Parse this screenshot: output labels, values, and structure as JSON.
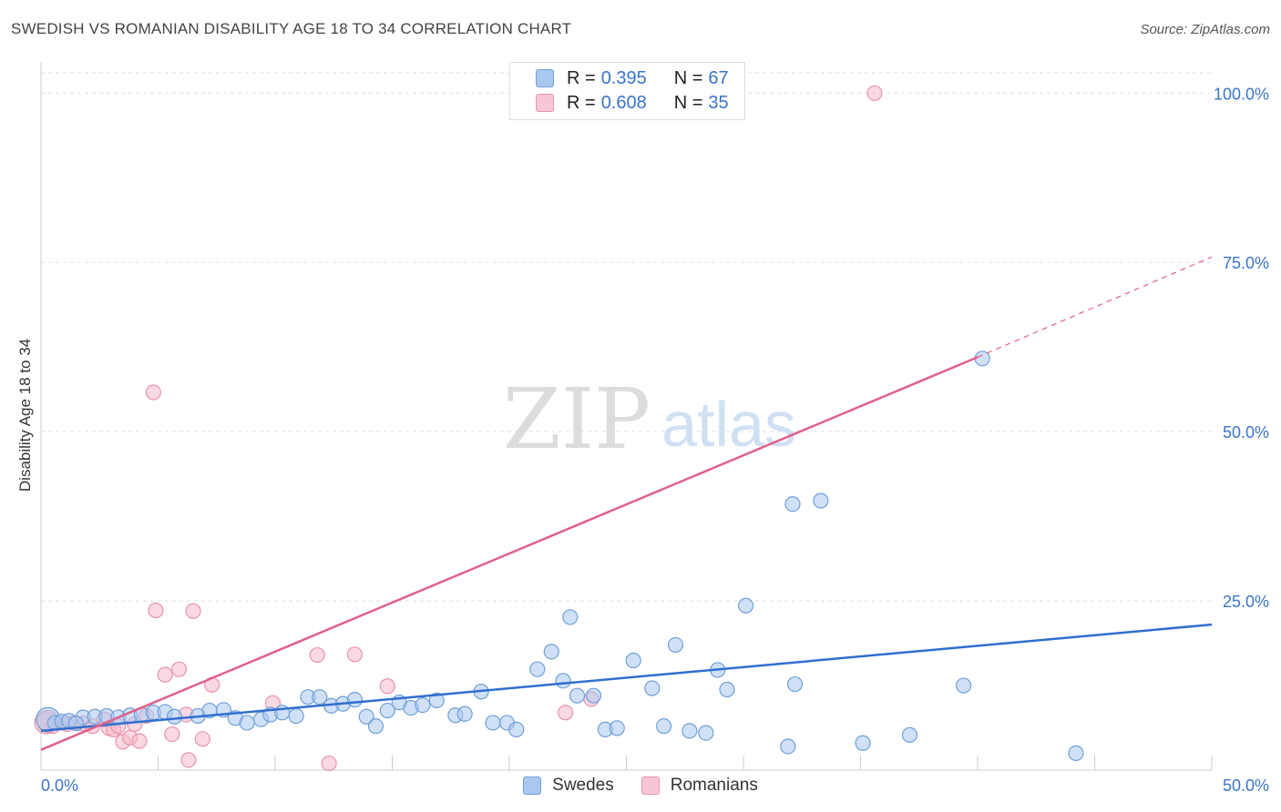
{
  "title": "SWEDISH VS ROMANIAN DISABILITY AGE 18 TO 34 CORRELATION CHART",
  "source": "Source: ZipAtlas.com",
  "watermark": {
    "zip": "ZIP",
    "atlas": "atlas"
  },
  "legend_top": [
    {
      "r_label": "R =",
      "r_value": "0.395",
      "n_label": "N =",
      "n_value": "67"
    },
    {
      "r_label": "R =",
      "r_value": "0.608",
      "n_label": "N =",
      "n_value": "35"
    }
  ],
  "legend_bottom": [
    {
      "label": "Swedes"
    },
    {
      "label": "Romanians"
    }
  ],
  "colors": {
    "swedes_fill": "#a9c8f0",
    "swedes_stroke": "#6f9fd8",
    "swedes_line": "#2f6fcf",
    "romanians_fill": "#f7b9cb",
    "romanians_stroke": "#e893ae",
    "romanians_line": "#e0608a",
    "axis_text": "#3a74c9",
    "grid": "#dddddd"
  },
  "chart_data": {
    "type": "scatter",
    "title": "SWEDISH VS ROMANIAN DISABILITY AGE 18 TO 34 CORRELATION CHART",
    "xlabel": "",
    "ylabel": "Disability Age 18 to 34",
    "xlim": [
      0,
      50
    ],
    "ylim": [
      0,
      103
    ],
    "x_tick_labels": [
      "0.0%",
      "50.0%"
    ],
    "y_ticks": [
      25,
      50,
      75,
      100
    ],
    "y_tick_labels": [
      "25.0%",
      "50.0%",
      "75.0%",
      "100.0%"
    ],
    "grid": true,
    "series": [
      {
        "name": "Swedes",
        "r": 0.395,
        "n": 67,
        "trend": {
          "x0": 0,
          "y0": 5.8,
          "x1": 50,
          "y1": 21.5
        },
        "points": [
          [
            0.3,
            7.5
          ],
          [
            0.6,
            7.0
          ],
          [
            0.9,
            7.2
          ],
          [
            1.2,
            7.3
          ],
          [
            1.8,
            7.8
          ],
          [
            2.3,
            7.9
          ],
          [
            2.8,
            8.0
          ],
          [
            3.3,
            7.8
          ],
          [
            3.8,
            8.1
          ],
          [
            4.3,
            8.2
          ],
          [
            4.8,
            8.5
          ],
          [
            5.3,
            8.6
          ],
          [
            5.7,
            7.9
          ],
          [
            6.7,
            8.0
          ],
          [
            7.2,
            8.8
          ],
          [
            7.8,
            8.9
          ],
          [
            8.3,
            7.7
          ],
          [
            8.8,
            7.0
          ],
          [
            9.4,
            7.5
          ],
          [
            9.8,
            8.2
          ],
          [
            10.3,
            8.5
          ],
          [
            10.9,
            8.0
          ],
          [
            11.4,
            10.8
          ],
          [
            11.9,
            10.8
          ],
          [
            12.4,
            9.5
          ],
          [
            12.9,
            9.8
          ],
          [
            13.4,
            10.4
          ],
          [
            13.9,
            7.9
          ],
          [
            14.3,
            6.5
          ],
          [
            14.8,
            8.8
          ],
          [
            15.3,
            10.0
          ],
          [
            15.8,
            9.2
          ],
          [
            16.3,
            9.6
          ],
          [
            16.9,
            10.3
          ],
          [
            17.7,
            8.1
          ],
          [
            18.1,
            8.3
          ],
          [
            18.8,
            11.6
          ],
          [
            19.3,
            7.0
          ],
          [
            19.9,
            7.0
          ],
          [
            20.3,
            6.0
          ],
          [
            21.2,
            14.9
          ],
          [
            21.8,
            17.5
          ],
          [
            22.3,
            13.2
          ],
          [
            22.6,
            22.6
          ],
          [
            22.9,
            11.0
          ],
          [
            23.6,
            11.0
          ],
          [
            24.1,
            6.0
          ],
          [
            24.6,
            6.2
          ],
          [
            25.3,
            16.2
          ],
          [
            26.1,
            12.1
          ],
          [
            26.6,
            6.5
          ],
          [
            27.1,
            18.5
          ],
          [
            27.7,
            5.8
          ],
          [
            28.4,
            5.5
          ],
          [
            28.9,
            14.8
          ],
          [
            29.3,
            11.9
          ],
          [
            30.1,
            24.3
          ],
          [
            31.9,
            3.5
          ],
          [
            32.1,
            39.3
          ],
          [
            32.2,
            12.7
          ],
          [
            33.3,
            39.8
          ],
          [
            35.1,
            4.0
          ],
          [
            37.1,
            5.2
          ],
          [
            39.4,
            12.5
          ],
          [
            40.2,
            60.8
          ],
          [
            44.2,
            2.5
          ],
          [
            1.5,
            6.9
          ]
        ]
      },
      {
        "name": "Romanians",
        "r": 0.608,
        "n": 35,
        "trend_solid": {
          "x0": 0,
          "y0": 3.0,
          "x1": 40,
          "y1": 61.0
        },
        "trend_dashed": {
          "x0": 40,
          "y0": 61.0,
          "x1": 50,
          "y1": 75.8
        },
        "points": [
          [
            0.2,
            7.0
          ],
          [
            0.5,
            6.5
          ],
          [
            0.8,
            7.0
          ],
          [
            1.1,
            6.8
          ],
          [
            1.4,
            7.0
          ],
          [
            1.8,
            6.9
          ],
          [
            2.2,
            6.5
          ],
          [
            2.7,
            7.5
          ],
          [
            2.9,
            6.2
          ],
          [
            3.1,
            6.0
          ],
          [
            3.3,
            6.5
          ],
          [
            3.5,
            4.2
          ],
          [
            3.8,
            4.8
          ],
          [
            4.0,
            6.8
          ],
          [
            4.2,
            4.3
          ],
          [
            4.5,
            8.0
          ],
          [
            4.8,
            55.8
          ],
          [
            4.9,
            23.6
          ],
          [
            5.3,
            14.1
          ],
          [
            5.6,
            5.3
          ],
          [
            5.9,
            14.9
          ],
          [
            6.2,
            8.2
          ],
          [
            6.3,
            1.5
          ],
          [
            6.5,
            23.5
          ],
          [
            6.9,
            4.6
          ],
          [
            7.3,
            12.6
          ],
          [
            9.9,
            9.9
          ],
          [
            11.8,
            17.0
          ],
          [
            12.3,
            1.0
          ],
          [
            13.4,
            17.1
          ],
          [
            14.8,
            12.4
          ],
          [
            22.4,
            8.5
          ],
          [
            23.5,
            10.5
          ],
          [
            35.6,
            100.0
          ],
          [
            0.3,
            7.2
          ]
        ]
      }
    ]
  }
}
